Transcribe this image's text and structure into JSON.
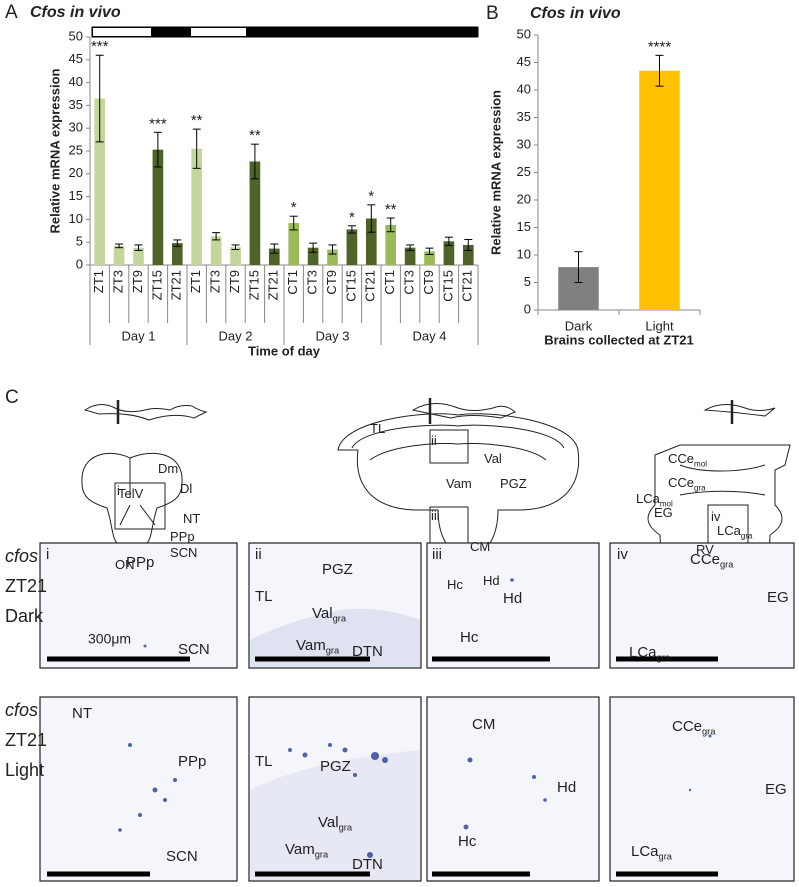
{
  "chart_data": [
    {
      "type": "bar",
      "panel": "A",
      "title": "Cfos in vivo",
      "ylabel": "Relative mRNA expression",
      "xlabel": "Time of day",
      "categories": [
        "ZT1",
        "ZT3",
        "ZT9",
        "ZT15",
        "ZT21",
        "ZT1",
        "ZT3",
        "ZT9",
        "ZT15",
        "ZT21",
        "CT1",
        "CT3",
        "CT9",
        "CT15",
        "CT21",
        "CT1",
        "CT3",
        "CT9",
        "CT15",
        "CT21"
      ],
      "groups": [
        "Day 1",
        "Day 2",
        "Day 3",
        "Day 4"
      ],
      "values": [
        36.5,
        4.2,
        3.8,
        25.3,
        4.8,
        25.5,
        6.3,
        3.9,
        22.7,
        3.6,
        9.2,
        3.8,
        3.4,
        7.8,
        10.2,
        8.8,
        3.8,
        3.0,
        5.2,
        4.4
      ],
      "errors": [
        9.5,
        0.4,
        0.6,
        3.8,
        0.7,
        4.3,
        0.8,
        0.5,
        3.8,
        1.0,
        1.5,
        1.0,
        1.0,
        0.8,
        3.0,
        1.5,
        0.6,
        0.7,
        0.9,
        1.2
      ],
      "colors": [
        "#c3d69b",
        "#c3d69b",
        "#c3d69b",
        "#4f6228",
        "#4f6228",
        "#c3d69b",
        "#c3d69b",
        "#c3d69b",
        "#4f6228",
        "#4f6228",
        "#9bbb59",
        "#4f6228",
        "#9bbb59",
        "#4f6228",
        "#4f6228",
        "#9bbb59",
        "#4f6228",
        "#9bbb59",
        "#4f6228",
        "#4f6228"
      ],
      "annotations": [
        "***",
        null,
        null,
        "***",
        null,
        "**",
        null,
        null,
        "**",
        null,
        "*",
        null,
        null,
        "*",
        "*",
        "**",
        null,
        null,
        null,
        null
      ],
      "ylim": [
        0,
        50
      ],
      "yticks": [
        0,
        5,
        10,
        15,
        20,
        25,
        30,
        35,
        40,
        45,
        50
      ]
    },
    {
      "type": "bar",
      "panel": "B",
      "title": "Cfos in vivo",
      "ylabel": "Relative mRNA expression",
      "xlabel": "Brains collected at ZT21",
      "categories": [
        "Dark",
        "Light"
      ],
      "values": [
        7.8,
        43.5
      ],
      "errors": [
        2.8,
        2.8
      ],
      "colors": [
        "#808080",
        "#ffc000"
      ],
      "annotations": [
        null,
        "****"
      ],
      "ylim": [
        0,
        50
      ],
      "yticks": [
        0,
        5,
        10,
        15,
        20,
        25,
        30,
        35,
        40,
        45,
        50
      ]
    }
  ],
  "panel_c": {
    "label": "C",
    "diagrams": [
      {
        "labels": [
          {
            "text": "Dm"
          },
          {
            "text": "Dl"
          },
          {
            "text": "TelV"
          },
          {
            "text": "i"
          },
          {
            "text": "NT"
          },
          {
            "text": "PPp"
          },
          {
            "text": "SCN"
          },
          {
            "text": "ON"
          }
        ]
      },
      {
        "labels": [
          {
            "text": "TL"
          },
          {
            "text": "ii"
          },
          {
            "text": "Val"
          },
          {
            "text": "Vam"
          },
          {
            "text": "PGZ"
          },
          {
            "text": "iii"
          },
          {
            "text": "CM"
          },
          {
            "text": "Hc"
          },
          {
            "text": "Hd"
          }
        ]
      },
      {
        "labels": [
          {
            "text": "CCe",
            "sub": "mol"
          },
          {
            "text": "CCe",
            "sub": "gra"
          },
          {
            "text": "LCa",
            "sub": "mol"
          },
          {
            "text": "iv"
          },
          {
            "text": "EG"
          },
          {
            "text": "LCa",
            "sub": "gra"
          },
          {
            "text": "RV"
          }
        ]
      }
    ],
    "scale_bar": "300μm",
    "rows": [
      {
        "gene": "cfos",
        "time": "ZT21",
        "condition": "Dark",
        "panels": [
          {
            "labels": [
              {
                "text": "i"
              },
              {
                "text": "PPp"
              },
              {
                "text": "SCN"
              }
            ]
          },
          {
            "labels": [
              {
                "text": "ii"
              },
              {
                "text": "PGZ"
              },
              {
                "text": "TL"
              },
              {
                "text": "Val",
                "sub": "gra"
              },
              {
                "text": "Vam",
                "sub": "gra"
              },
              {
                "text": "DTN"
              }
            ]
          },
          {
            "labels": [
              {
                "text": "iii"
              },
              {
                "text": "Hd"
              },
              {
                "text": "Hc"
              }
            ]
          },
          {
            "labels": [
              {
                "text": "iv"
              },
              {
                "text": "CCe",
                "sub": "gra"
              },
              {
                "text": "EG"
              },
              {
                "text": "LCa",
                "sub": "gra"
              }
            ]
          }
        ]
      },
      {
        "gene": "cfos",
        "time": "ZT21",
        "condition": "Light",
        "panels": [
          {
            "labels": [
              {
                "text": "NT"
              },
              {
                "text": "PPp"
              },
              {
                "text": "SCN"
              }
            ]
          },
          {
            "labels": [
              {
                "text": "TL"
              },
              {
                "text": "PGZ"
              },
              {
                "text": "Val",
                "sub": "gra"
              },
              {
                "text": "Vam",
                "sub": "gra"
              },
              {
                "text": "DTN"
              }
            ]
          },
          {
            "labels": [
              {
                "text": "CM"
              },
              {
                "text": "Hd"
              },
              {
                "text": "Hc"
              }
            ]
          },
          {
            "labels": [
              {
                "text": "CCe",
                "sub": "gra"
              },
              {
                "text": "EG"
              },
              {
                "text": "LCa",
                "sub": "gra"
              }
            ]
          }
        ]
      }
    ]
  }
}
